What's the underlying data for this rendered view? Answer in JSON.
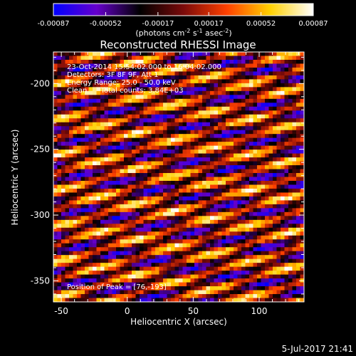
{
  "chart_data": {
    "type": "heatmap",
    "title": "Reconstructed RHESSI Image",
    "xlabel": "Heliocentric X (arcsec)",
    "ylabel": "Heliocentric Y (arcsec)",
    "xlim": [
      -56,
      134
    ],
    "ylim": [
      -366,
      -176
    ],
    "xticks": [
      -50,
      0,
      50,
      100
    ],
    "xtick_labels": [
      "-50",
      "0",
      "50",
      "100"
    ],
    "yticks": [
      -200,
      -250,
      -300,
      -350
    ],
    "ytick_labels": [
      "-200",
      "-250",
      "-300",
      "-350"
    ],
    "colorbar": {
      "ticks": [
        -0.00087,
        -0.00052,
        -0.00017,
        0.00017,
        0.00052,
        0.00087
      ],
      "tick_labels": [
        "-0.00087",
        "-0.00052",
        "-0.00017",
        "0.00017",
        "0.00052",
        "0.00087"
      ],
      "range": [
        -0.00087,
        0.00087
      ],
      "label_parts": [
        "(photons cm",
        "-2",
        " s",
        "-1",
        " asec",
        "-2",
        ")"
      ],
      "colormap": [
        "#0000ff",
        "#6600cc",
        "#000000",
        "#7a0a0a",
        "#ff4000",
        "#ffd000",
        "#ffffff"
      ]
    },
    "annotations": {
      "time": "23-Oct-2014 15:54:02.000 to 16:04:02.000",
      "detectors": "Detectors: 3F 8F 9F, Att 1",
      "energy": "Energy Range: 25.0 - 50.0 keV",
      "method": "Clean      Total counts: 3.84E+03",
      "peak": "Position of Peak = [76,-193]"
    },
    "pattern": {
      "description_values": "diagonal fringe pattern of positive/negative flux",
      "x_range": [
        -56,
        134
      ],
      "y_range": [
        -366,
        -176
      ],
      "cols": 64,
      "rows": 64,
      "fringe_slope": 0.28,
      "fringe_period_arcsec": 13.5,
      "peak_position": [
        76,
        -193
      ]
    },
    "grid": false
  },
  "footer": {
    "date": "5-Jul-2017 21:41"
  }
}
